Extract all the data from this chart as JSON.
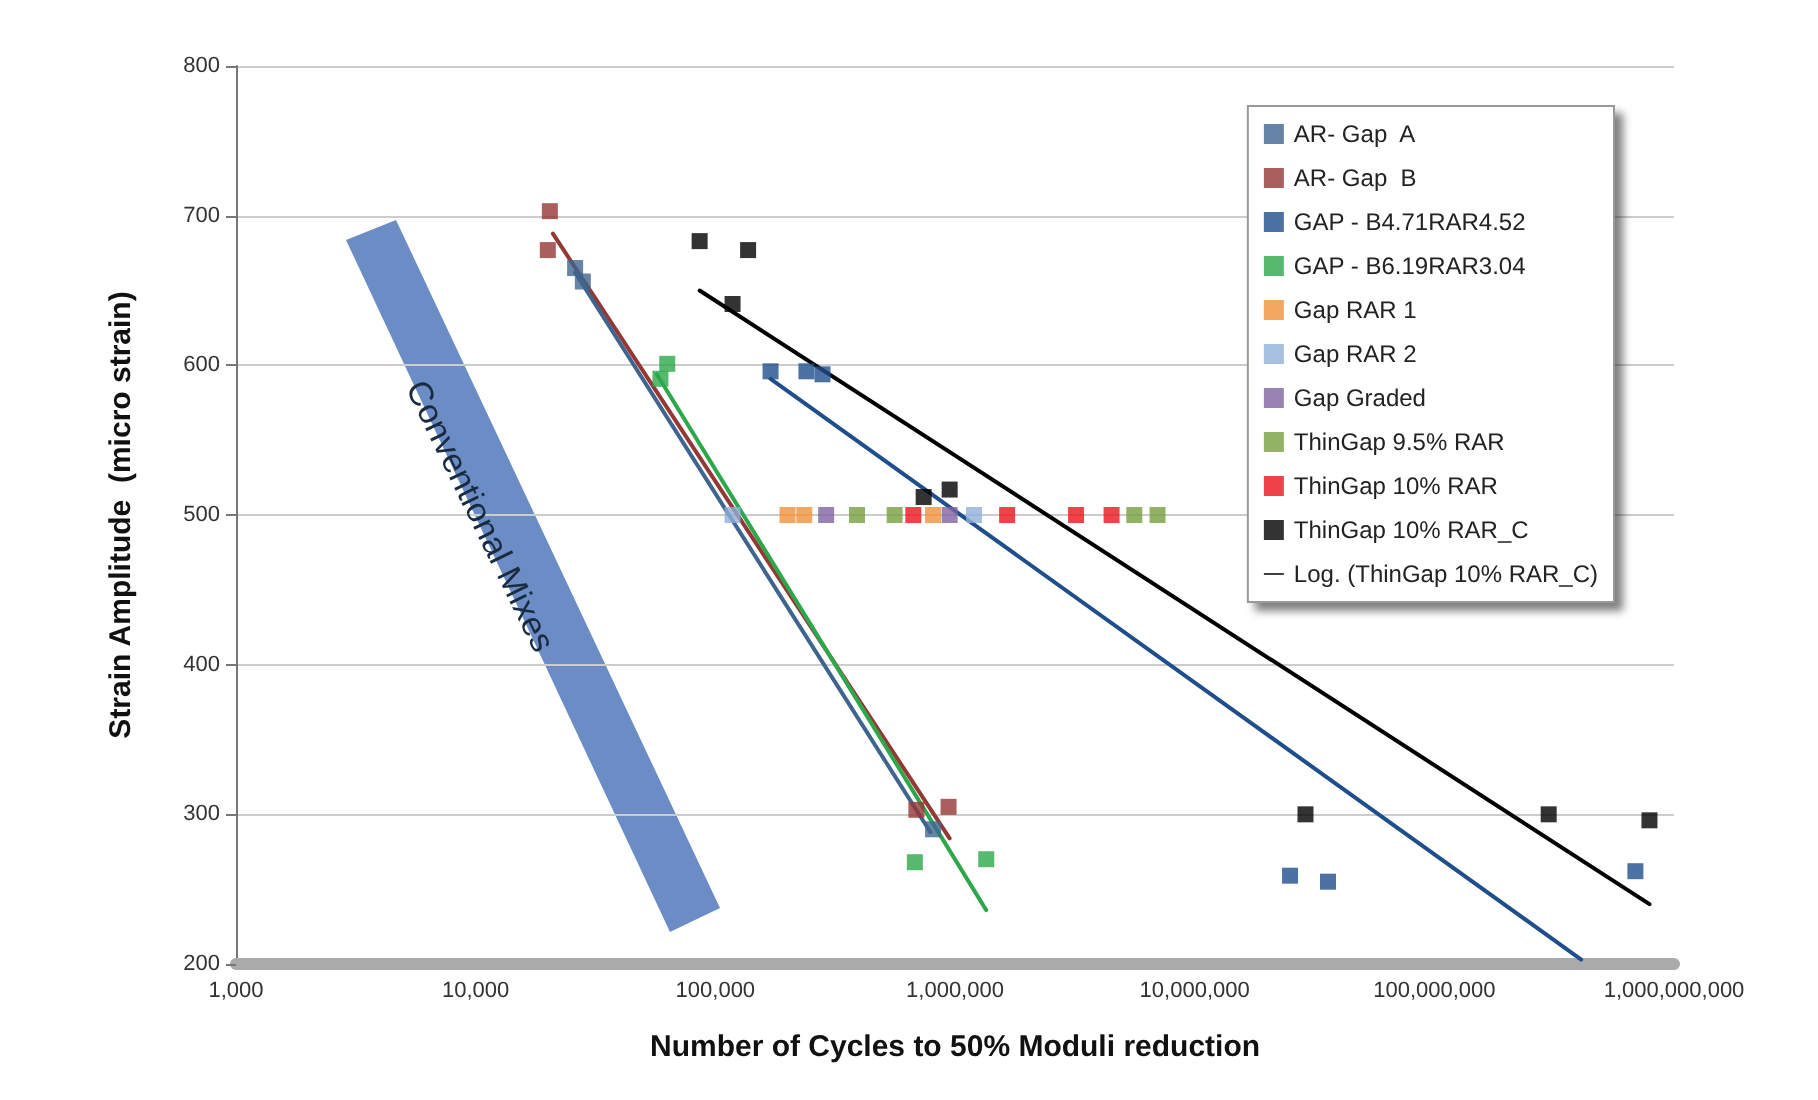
{
  "chart_data": {
    "type": "scatter",
    "xlabel": "Number of Cycles to 50% Moduli reduction",
    "ylabel": "Strain Amplitude  (micro strain)",
    "log": "x",
    "xlim": [
      1000,
      1000000000
    ],
    "ylim": [
      200,
      800
    ],
    "xticks": [
      {
        "value": 1000,
        "label": "1,000"
      },
      {
        "value": 10000,
        "label": "10,000"
      },
      {
        "value": 100000,
        "label": "100,000"
      },
      {
        "value": 1000000,
        "label": "1,000,000"
      },
      {
        "value": 10000000,
        "label": "10,000,000"
      },
      {
        "value": 100000000,
        "label": "100,000,000"
      },
      {
        "value": 1000000000,
        "label": "1,000,000,000"
      }
    ],
    "yticks": [
      200,
      300,
      400,
      500,
      600,
      700,
      800
    ],
    "grid": "y",
    "legend": "top right",
    "marker": "square",
    "annotations": [
      "Conventional Mixes"
    ],
    "series": [
      {
        "name": "AR- Gap  A",
        "color": "#3e6590",
        "x": [
          26000,
          28000,
          810000
        ],
        "values": [
          665,
          656,
          290
        ]
      },
      {
        "name": "AR- Gap  B",
        "color": "#953735",
        "x": [
          20400,
          20000,
          690000,
          940000
        ],
        "values": [
          703,
          677,
          303,
          305
        ]
      },
      {
        "name": "GAP - B4.71RAR4.52",
        "color": "#1f4e8c",
        "x": [
          170000,
          240000,
          280000,
          25000000,
          36000000,
          690000000
        ],
        "values": [
          596,
          596,
          594,
          259,
          255,
          262
        ]
      },
      {
        "name": "GAP - B6.19RAR3.04",
        "color": "#2ca84a",
        "x": [
          63000,
          59000,
          680000,
          1350000
        ],
        "values": [
          601,
          591,
          268,
          270
        ]
      },
      {
        "name": "Gap RAR 1",
        "color": "#f0913a",
        "x": [
          200000,
          235000,
          810000
        ],
        "values": [
          500,
          500,
          500
        ]
      },
      {
        "name": "Gap RAR 2",
        "color": "#8fb0d8",
        "x": [
          118000,
          1200000
        ],
        "values": [
          500,
          500
        ]
      },
      {
        "name": "Gap Graded",
        "color": "#8064a2",
        "x": [
          290000,
          950000
        ],
        "values": [
          500,
          500
        ]
      },
      {
        "name": "ThinGap 9.5% RAR",
        "color": "#77a040",
        "x": [
          390000,
          560000,
          5600000,
          7000000
        ],
        "values": [
          500,
          500,
          500,
          500
        ]
      },
      {
        "name": "ThinGap 10% RAR",
        "color": "#e8141c",
        "x": [
          670000,
          1650000,
          3200000,
          4500000
        ],
        "values": [
          500,
          500,
          500,
          500
        ]
      },
      {
        "name": "ThinGap 10% RAR_C",
        "color": "#000000",
        "x": [
          86000,
          137000,
          118000,
          740000,
          950000,
          29000000,
          300000000,
          790000000
        ],
        "values": [
          683,
          677,
          641,
          512,
          517,
          300,
          300,
          296
        ]
      },
      {
        "name": "Log. (ThinGap 10% RAR_C)",
        "type": "line",
        "marker": "none",
        "color": "#000000",
        "x": [
          86000,
          790000000
        ],
        "values": [
          650,
          240
        ]
      },
      {
        "type": "line",
        "marker": "none",
        "color": "#1f4e8c",
        "x": [
          170000,
          410000000
        ],
        "values": [
          591,
          203
        ]
      },
      {
        "type": "line",
        "marker": "none",
        "color": "#953735",
        "x": [
          21000,
          950000
        ],
        "values": [
          688,
          284
        ]
      },
      {
        "type": "line",
        "marker": "none",
        "color": "#3e6590",
        "x": [
          26000,
          790000
        ],
        "values": [
          662,
          288
        ]
      },
      {
        "type": "line",
        "marker": "none",
        "color": "#2ca84a",
        "x": [
          57000,
          1350000
        ],
        "values": [
          594,
          236
        ]
      }
    ]
  }
}
